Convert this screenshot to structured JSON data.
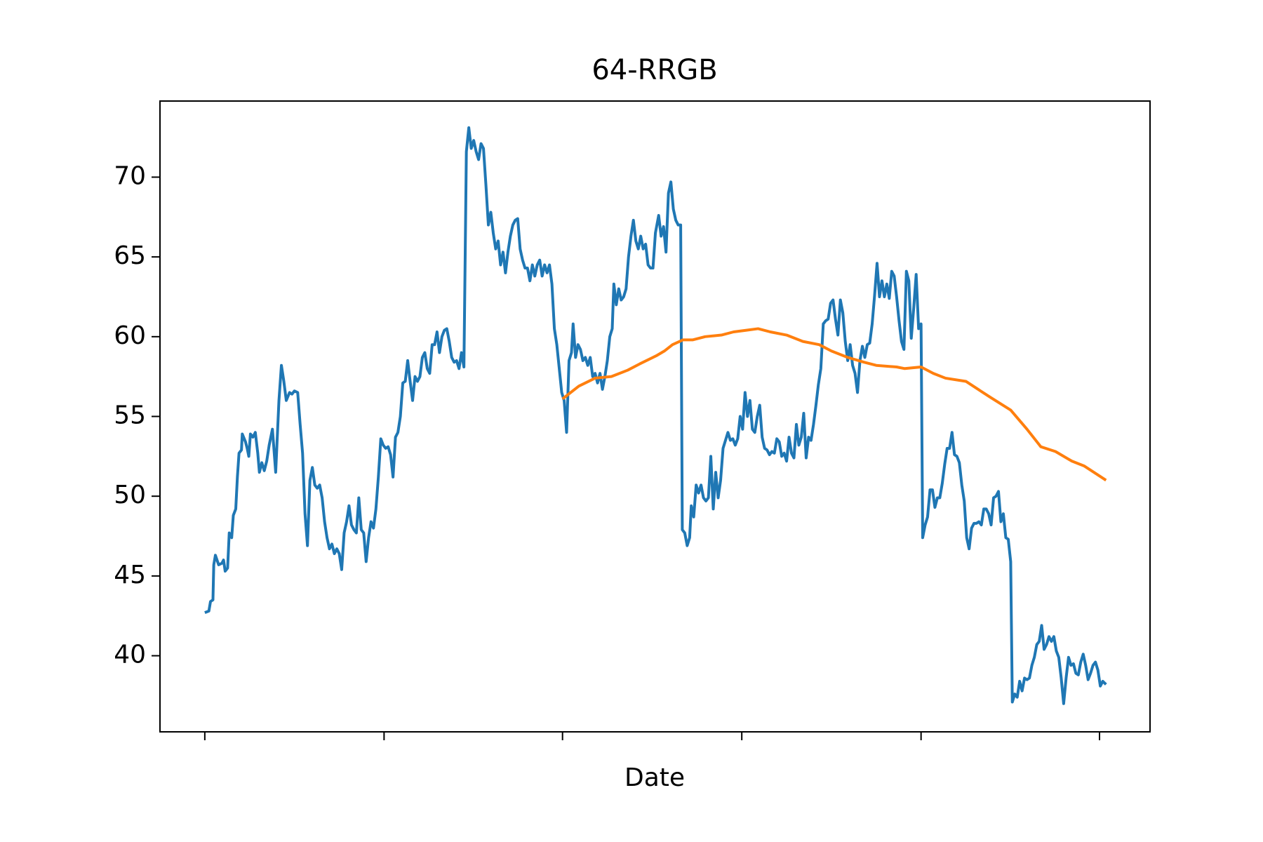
{
  "chart_data": {
    "type": "line",
    "title": "64-RRGB",
    "xlabel": "Date",
    "xlim": [
      -55,
      1160
    ],
    "xticks": [
      0,
      220,
      439,
      659,
      879,
      1098
    ],
    "ylim": [
      35.23,
      74.77
    ],
    "yticks": [
      40,
      45,
      50,
      55,
      60,
      65,
      70
    ],
    "series": [
      {
        "color": "#1f77b4",
        "x": [
          0,
          5,
          7,
          10,
          11,
          13,
          17,
          21,
          23,
          25,
          28,
          30,
          33,
          35,
          38,
          40,
          42,
          45,
          46,
          50,
          52,
          54,
          56,
          59,
          62,
          65,
          67,
          70,
          73,
          76,
          79,
          83,
          87,
          91,
          94,
          97,
          100,
          104,
          107,
          110,
          114,
          117,
          120,
          123,
          126,
          129,
          132,
          135,
          138,
          141,
          144,
          147,
          150,
          153,
          156,
          159,
          162,
          165,
          168,
          171,
          174,
          177,
          180,
          183,
          186,
          189,
          192,
          195,
          198,
          201,
          204,
          207,
          210,
          213,
          216,
          219,
          222,
          225,
          228,
          231,
          234,
          237,
          240,
          243,
          246,
          249,
          252,
          255,
          258,
          261,
          264,
          267,
          270,
          273,
          276,
          279,
          282,
          285,
          288,
          291,
          294,
          297,
          300,
          303,
          306,
          309,
          312,
          315,
          318,
          321,
          324,
          327,
          330,
          333,
          336,
          339,
          342,
          345,
          348,
          351,
          354,
          357,
          360,
          363,
          366,
          369,
          372,
          375,
          378,
          381,
          384,
          387,
          390,
          393,
          396,
          399,
          402,
          405,
          408,
          411,
          414,
          417,
          420,
          423,
          426,
          429,
          432,
          435,
          438,
          441,
          444,
          447,
          450,
          452,
          455,
          458,
          461,
          464,
          467,
          470,
          473,
          476,
          479,
          482,
          485,
          488,
          491,
          494,
          497,
          500,
          502,
          505,
          508,
          511,
          514,
          517,
          520,
          523,
          526,
          529,
          532,
          535,
          538,
          541,
          544,
          547,
          550,
          553,
          557,
          560,
          563,
          566,
          569,
          572,
          575,
          578,
          581,
          584,
          586,
          589,
          592,
          595,
          597,
          600,
          603,
          606,
          609,
          612,
          615,
          618,
          621,
          624,
          627,
          630,
          633,
          636,
          639,
          642,
          645,
          648,
          651,
          654,
          657,
          660,
          663,
          666,
          669,
          672,
          675,
          678,
          681,
          684,
          687,
          690,
          693,
          696,
          699,
          702,
          705,
          708,
          711,
          714,
          717,
          720,
          723,
          726,
          729,
          732,
          735,
          738,
          741,
          744,
          747,
          750,
          753,
          756,
          759,
          762,
          765,
          768,
          771,
          774,
          777,
          780,
          783,
          786,
          789,
          792,
          795,
          798,
          801,
          804,
          807,
          810,
          813,
          816,
          819,
          822,
          825,
          828,
          831,
          834,
          837,
          840,
          843,
          846,
          849,
          852,
          855,
          858,
          861,
          864,
          867,
          870,
          873,
          876,
          879,
          881,
          884,
          887,
          890,
          893,
          896,
          899,
          902,
          905,
          908,
          911,
          914,
          917,
          920,
          923,
          926,
          929,
          932,
          935,
          938,
          941,
          944,
          947,
          950,
          953,
          956,
          959,
          962,
          965,
          968,
          971,
          974,
          977,
          980,
          983,
          986,
          989,
          991,
          994,
          997,
          1000,
          1003,
          1006,
          1009,
          1012,
          1015,
          1018,
          1021,
          1024,
          1027,
          1030,
          1033,
          1036,
          1039,
          1042,
          1045,
          1048,
          1051,
          1054,
          1057,
          1060,
          1063,
          1066,
          1069,
          1072,
          1075,
          1078,
          1081,
          1084,
          1087,
          1090,
          1093,
          1096,
          1099,
          1102,
          1106
        ],
        "values": [
          42.7,
          42.8,
          43.4,
          43.5,
          45.7,
          46.3,
          45.7,
          45.8,
          46.0,
          45.3,
          45.5,
          47.7,
          47.4,
          48.8,
          49.2,
          51.2,
          52.7,
          52.9,
          53.9,
          53.4,
          53.0,
          52.5,
          53.9,
          53.7,
          54.0,
          52.7,
          51.5,
          52.1,
          51.6,
          52.2,
          53.2,
          54.2,
          51.5,
          56.0,
          58.2,
          57.2,
          56.0,
          56.5,
          56.4,
          56.6,
          56.5,
          54.5,
          52.7,
          48.9,
          46.9,
          51.0,
          51.8,
          50.7,
          50.5,
          50.7,
          49.9,
          48.4,
          47.4,
          46.7,
          47.0,
          46.4,
          46.7,
          46.4,
          45.4,
          47.7,
          48.4,
          49.4,
          48.2,
          47.9,
          47.7,
          49.9,
          47.9,
          47.7,
          45.9,
          47.4,
          48.4,
          48.0,
          49.2,
          51.2,
          53.6,
          53.2,
          53.0,
          53.1,
          52.6,
          51.2,
          53.7,
          54.0,
          55.0,
          57.1,
          57.2,
          58.5,
          57.2,
          56.0,
          57.5,
          57.2,
          57.5,
          58.7,
          59.0,
          58.0,
          57.7,
          59.5,
          59.5,
          60.3,
          59.0,
          60.0,
          60.4,
          60.5,
          59.7,
          58.7,
          58.4,
          58.5,
          58.0,
          59.0,
          58.1,
          71.6,
          73.1,
          71.8,
          72.3,
          71.6,
          71.1,
          72.1,
          71.8,
          69.5,
          67.0,
          67.8,
          66.5,
          65.5,
          66.0,
          64.5,
          65.3,
          64.0,
          65.3,
          66.3,
          67.0,
          67.3,
          67.4,
          65.5,
          64.8,
          64.3,
          64.3,
          63.5,
          64.5,
          63.8,
          64.5,
          64.8,
          63.8,
          64.5,
          64.0,
          64.5,
          63.3,
          60.5,
          59.5,
          58.0,
          56.5,
          56.0,
          54.0,
          58.5,
          59.0,
          60.8,
          58.7,
          59.5,
          59.2,
          58.5,
          58.7,
          58.2,
          58.7,
          57.5,
          57.7,
          57.1,
          57.7,
          56.7,
          57.5,
          58.5,
          60.0,
          60.5,
          63.3,
          62.0,
          63.0,
          62.3,
          62.5,
          63.0,
          65.0,
          66.3,
          67.3,
          66.0,
          65.5,
          66.3,
          65.5,
          65.8,
          64.5,
          64.3,
          64.3,
          66.5,
          67.6,
          66.3,
          66.9,
          65.3,
          69.0,
          69.7,
          68.0,
          67.3,
          67.0,
          67.0,
          47.9,
          47.7,
          46.9,
          47.4,
          49.4,
          48.7,
          50.7,
          50.2,
          50.7,
          49.9,
          49.7,
          49.9,
          52.5,
          49.2,
          51.5,
          49.9,
          51.0,
          53.0,
          53.5,
          54.0,
          53.5,
          53.6,
          53.2,
          53.6,
          55.0,
          54.2,
          56.5,
          55.0,
          56.0,
          54.2,
          54.0,
          55.0,
          55.7,
          53.7,
          53.0,
          52.9,
          52.6,
          52.8,
          52.7,
          53.6,
          53.4,
          52.5,
          52.7,
          52.2,
          53.7,
          52.7,
          52.4,
          54.5,
          53.2,
          53.7,
          55.2,
          52.4,
          53.7,
          53.5,
          54.5,
          55.7,
          57.0,
          58.0,
          60.8,
          61.0,
          61.1,
          62.1,
          62.3,
          61.1,
          60.1,
          62.3,
          61.5,
          59.7,
          58.5,
          59.5,
          58.2,
          57.7,
          56.5,
          58.5,
          59.4,
          58.7,
          59.5,
          59.6,
          60.8,
          62.6,
          64.6,
          62.5,
          63.5,
          62.5,
          63.3,
          62.4,
          64.1,
          63.8,
          62.5,
          61.0,
          59.7,
          59.2,
          64.1,
          63.5,
          59.9,
          61.8,
          63.9,
          60.5,
          60.8,
          47.4,
          48.2,
          48.7,
          50.4,
          50.4,
          49.3,
          49.9,
          49.9,
          50.8,
          52.0,
          53.0,
          53.0,
          54.0,
          52.6,
          52.5,
          52.1,
          50.7,
          49.7,
          47.4,
          46.7,
          48.0,
          48.3,
          48.3,
          48.4,
          48.2,
          49.2,
          49.2,
          48.9,
          48.2,
          49.9,
          50.0,
          50.3,
          48.4,
          48.9,
          47.4,
          47.3,
          45.9,
          37.1,
          37.6,
          37.4,
          38.4,
          37.8,
          38.6,
          38.5,
          38.6,
          39.4,
          39.9,
          40.7,
          40.9,
          41.9,
          40.4,
          40.7,
          41.2,
          40.9,
          41.2,
          40.3,
          39.9,
          38.6,
          37.0,
          38.6,
          39.9,
          39.4,
          39.5,
          38.9,
          38.8,
          39.6,
          40.1,
          39.4,
          38.5,
          38.9,
          39.4,
          39.6,
          39.1,
          38.1,
          38.4,
          38.2
        ]
      },
      {
        "color": "#ff7f0e",
        "x": [
          439,
          459,
          479,
          499,
          519,
          534,
          554,
          564,
          574,
          587,
          599,
          614,
          634,
          649,
          664,
          679,
          694,
          714,
          734,
          754,
          769,
          789,
          809,
          824,
          849,
          859,
          879,
          894,
          909,
          934,
          949,
          964,
          989,
          1009,
          1026,
          1044,
          1064,
          1079,
          1094,
          1106
        ],
        "values": [
          56.1,
          56.9,
          57.4,
          57.5,
          57.9,
          58.3,
          58.8,
          59.1,
          59.5,
          59.8,
          59.8,
          60.0,
          60.1,
          60.3,
          60.4,
          60.5,
          60.3,
          60.1,
          59.7,
          59.5,
          59.1,
          58.7,
          58.4,
          58.2,
          58.1,
          58.0,
          58.1,
          57.7,
          57.4,
          57.2,
          56.7,
          56.2,
          55.4,
          54.2,
          53.1,
          52.8,
          52.2,
          51.9,
          51.4,
          51.0
        ]
      }
    ]
  }
}
